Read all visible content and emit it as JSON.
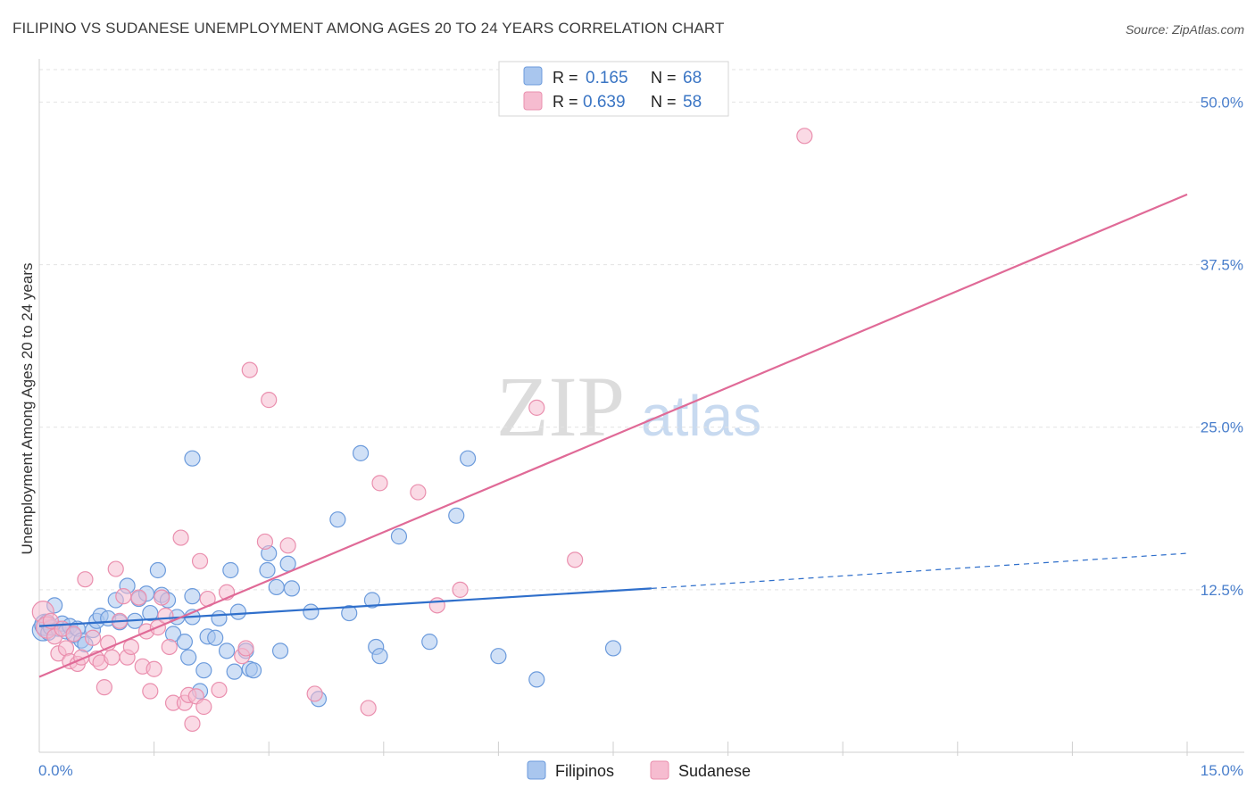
{
  "title": "FILIPINO VS SUDANESE UNEMPLOYMENT AMONG AGES 20 TO 24 YEARS CORRELATION CHART",
  "source": "Source: ZipAtlas.com",
  "watermark": {
    "zip": "ZIP",
    "atlas": "atlas"
  },
  "colors": {
    "filipino_fill": "#a9c6ee",
    "filipino_stroke": "#6c9bdc",
    "filipino_line": "#2f6fcb",
    "sudanese_fill": "#f6bcd0",
    "sudanese_stroke": "#ea8fae",
    "sudanese_line": "#e06a97",
    "tick_label": "#4a7fcc",
    "grid": "#e3e3e3"
  },
  "legend": {
    "items": [
      {
        "r_label": "R =",
        "r_value": "0.165",
        "n_label": "N =",
        "n_value": "68"
      },
      {
        "r_label": "R =",
        "r_value": "0.639",
        "n_label": "N =",
        "n_value": "58"
      }
    ]
  },
  "chart_data": {
    "type": "scatter",
    "title": "FILIPINO VS SUDANESE UNEMPLOYMENT AMONG AGES 20 TO 24 YEARS CORRELATION CHART",
    "xlabel": "",
    "ylabel": "Unemployment Among Ages 20 to 24 years",
    "xlim": [
      0,
      15
    ],
    "ylim": [
      0,
      52.5
    ],
    "x_tick_labels": [
      "0.0%",
      "15.0%"
    ],
    "y_ticks": [
      12.5,
      25.0,
      37.5,
      50.0
    ],
    "y_tick_labels": [
      "12.5%",
      "25.0%",
      "37.5%",
      "50.0%"
    ],
    "grid": true,
    "legend_position": "top-center",
    "series": [
      {
        "name": "Filipinos",
        "color": "#a9c6ee",
        "trend": {
          "x0": 0,
          "y0": 9.7,
          "x1": 8.0,
          "y1": 12.6,
          "dashed_to_x": 15.0,
          "dashed_to_y": 15.3
        },
        "points": [
          [
            0.05,
            9.4
          ],
          [
            0.08,
            9.8
          ],
          [
            0.1,
            10.0
          ],
          [
            0.12,
            9.2
          ],
          [
            0.15,
            9.6
          ],
          [
            0.2,
            11.3
          ],
          [
            0.25,
            9.5
          ],
          [
            0.3,
            9.9
          ],
          [
            0.35,
            9.3
          ],
          [
            0.4,
            9.7
          ],
          [
            0.45,
            9.0
          ],
          [
            0.5,
            9.5
          ],
          [
            0.55,
            8.6
          ],
          [
            0.6,
            8.3
          ],
          [
            0.7,
            9.4
          ],
          [
            0.75,
            10.1
          ],
          [
            0.8,
            10.5
          ],
          [
            0.9,
            10.3
          ],
          [
            1.0,
            11.7
          ],
          [
            1.05,
            10.0
          ],
          [
            1.15,
            12.8
          ],
          [
            1.25,
            10.1
          ],
          [
            1.3,
            11.8
          ],
          [
            1.4,
            12.2
          ],
          [
            1.45,
            10.7
          ],
          [
            1.55,
            14.0
          ],
          [
            1.6,
            12.1
          ],
          [
            1.68,
            11.7
          ],
          [
            1.75,
            9.1
          ],
          [
            1.8,
            10.4
          ],
          [
            1.9,
            8.5
          ],
          [
            1.95,
            7.3
          ],
          [
            2.0,
            12.0
          ],
          [
            2.0,
            10.4
          ],
          [
            2.0,
            22.6
          ],
          [
            2.1,
            4.7
          ],
          [
            2.15,
            6.3
          ],
          [
            2.2,
            8.9
          ],
          [
            2.3,
            8.8
          ],
          [
            2.35,
            10.3
          ],
          [
            2.45,
            7.8
          ],
          [
            2.5,
            14.0
          ],
          [
            2.55,
            6.2
          ],
          [
            2.6,
            10.8
          ],
          [
            2.7,
            7.8
          ],
          [
            2.75,
            6.4
          ],
          [
            2.8,
            6.3
          ],
          [
            2.98,
            14.0
          ],
          [
            3.0,
            15.3
          ],
          [
            3.1,
            12.7
          ],
          [
            3.15,
            7.8
          ],
          [
            3.25,
            14.5
          ],
          [
            3.3,
            12.6
          ],
          [
            3.55,
            10.8
          ],
          [
            3.65,
            4.1
          ],
          [
            3.9,
            17.9
          ],
          [
            4.05,
            10.7
          ],
          [
            4.2,
            23.0
          ],
          [
            4.35,
            11.7
          ],
          [
            4.4,
            8.1
          ],
          [
            4.45,
            7.4
          ],
          [
            4.7,
            16.6
          ],
          [
            5.1,
            8.5
          ],
          [
            5.45,
            18.2
          ],
          [
            5.6,
            22.6
          ],
          [
            6.0,
            7.4
          ],
          [
            6.5,
            5.6
          ],
          [
            7.5,
            8.0
          ]
        ]
      },
      {
        "name": "Sudanese",
        "color": "#f6bcd0",
        "trend": {
          "x0": 0,
          "y0": 5.8,
          "x1": 15.0,
          "y1": 42.9
        },
        "points": [
          [
            0.05,
            10.8
          ],
          [
            0.1,
            9.6
          ],
          [
            0.15,
            10.1
          ],
          [
            0.2,
            8.9
          ],
          [
            0.25,
            7.6
          ],
          [
            0.3,
            9.5
          ],
          [
            0.35,
            8.0
          ],
          [
            0.4,
            7.0
          ],
          [
            0.45,
            9.1
          ],
          [
            0.5,
            6.8
          ],
          [
            0.55,
            7.3
          ],
          [
            0.6,
            13.3
          ],
          [
            0.7,
            8.8
          ],
          [
            0.75,
            7.2
          ],
          [
            0.8,
            6.9
          ],
          [
            0.85,
            5.0
          ],
          [
            0.9,
            8.4
          ],
          [
            0.95,
            7.3
          ],
          [
            1.0,
            14.1
          ],
          [
            1.05,
            10.1
          ],
          [
            1.1,
            12.0
          ],
          [
            1.15,
            7.3
          ],
          [
            1.2,
            8.1
          ],
          [
            1.3,
            11.9
          ],
          [
            1.35,
            6.6
          ],
          [
            1.4,
            9.3
          ],
          [
            1.45,
            4.7
          ],
          [
            1.5,
            6.4
          ],
          [
            1.55,
            9.6
          ],
          [
            1.6,
            11.9
          ],
          [
            1.65,
            10.5
          ],
          [
            1.7,
            8.1
          ],
          [
            1.75,
            3.8
          ],
          [
            1.85,
            16.5
          ],
          [
            1.9,
            3.8
          ],
          [
            1.95,
            4.4
          ],
          [
            2.0,
            2.2
          ],
          [
            2.05,
            4.3
          ],
          [
            2.1,
            14.7
          ],
          [
            2.15,
            3.5
          ],
          [
            2.2,
            11.8
          ],
          [
            2.35,
            4.8
          ],
          [
            2.45,
            12.3
          ],
          [
            2.65,
            7.4
          ],
          [
            2.7,
            8.0
          ],
          [
            2.75,
            29.4
          ],
          [
            2.95,
            16.2
          ],
          [
            3.0,
            27.1
          ],
          [
            3.25,
            15.9
          ],
          [
            3.6,
            4.5
          ],
          [
            4.3,
            3.4
          ],
          [
            4.45,
            20.7
          ],
          [
            4.95,
            20.0
          ],
          [
            5.2,
            11.3
          ],
          [
            5.5,
            12.5
          ],
          [
            6.5,
            26.5
          ],
          [
            7.0,
            14.8
          ],
          [
            10.0,
            47.4
          ]
        ]
      }
    ]
  }
}
